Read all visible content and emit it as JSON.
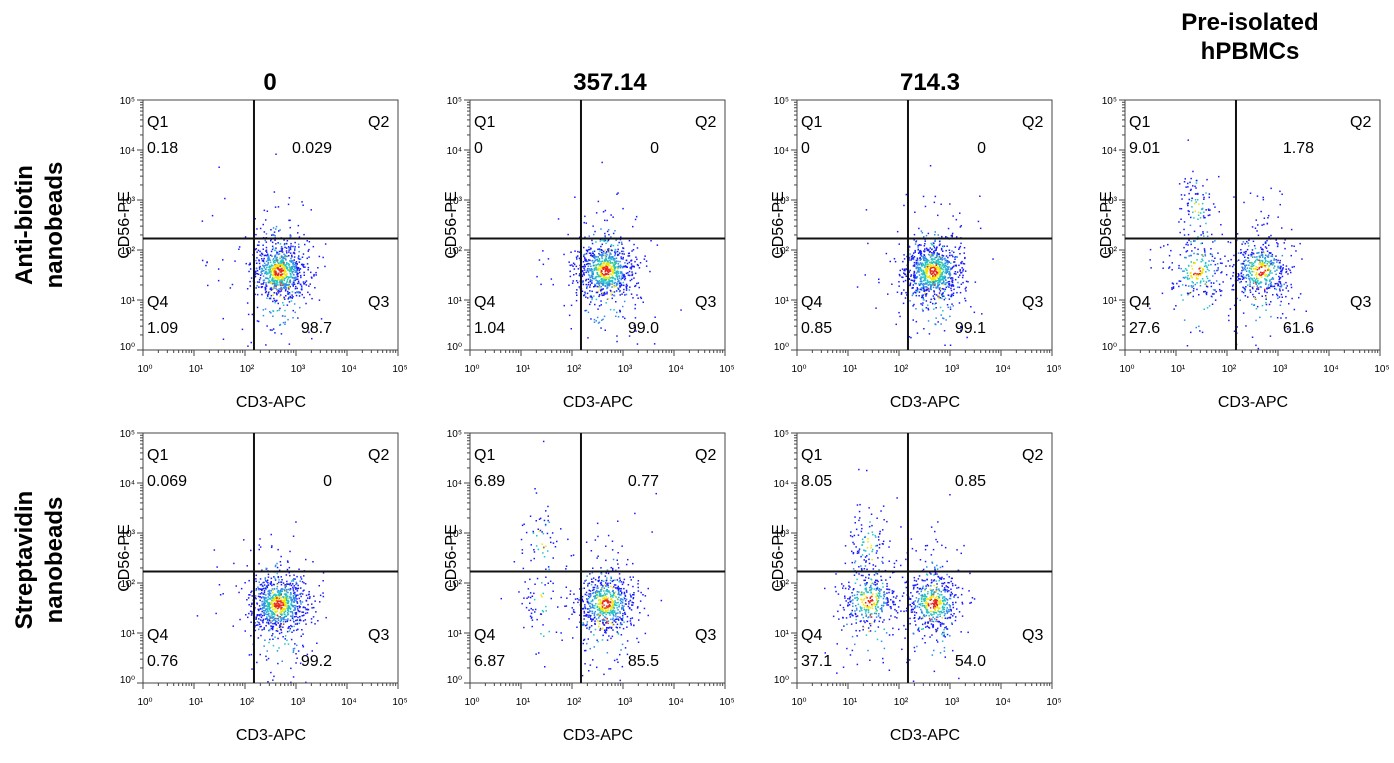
{
  "column_titles": [
    "0",
    "357.14",
    "714.3",
    "Pre-isolated\nhPBMCs"
  ],
  "row_titles": [
    "Anti-biotin\nnanobeads",
    "Streptavidin\nnanobeads"
  ],
  "colors": {
    "cold": "#1a1aff",
    "mid": "#22c4c4",
    "warm": "#f2e600",
    "hot": "#e8281c"
  },
  "chart_data": [
    {
      "type": "scatter",
      "row": 0,
      "col": 0,
      "xlabel": "CD3-APC",
      "ylabel": "CD56-PE",
      "x_scale": "log",
      "y_scale": "log",
      "xlim": [
        1,
        100000
      ],
      "ylim": [
        1,
        100000
      ],
      "x_ticks": [
        "10⁰",
        "10¹",
        "10²",
        "10³",
        "10⁴",
        "10⁵"
      ],
      "y_ticks": [
        "10⁰",
        "10¹",
        "10²",
        "10³",
        "10⁴",
        "10⁵"
      ],
      "x_gate": 150,
      "y_gate": 170,
      "quadrants": {
        "Q1": "0.18",
        "Q2": "0.029",
        "Q3": "98.7",
        "Q4": "1.09"
      },
      "populations": [
        {
          "x": 450,
          "y": 38,
          "n": 900
        },
        {
          "x": 25,
          "y": 45,
          "n": 8
        },
        {
          "x": 40,
          "y": 500,
          "n": 3
        }
      ]
    },
    {
      "type": "scatter",
      "row": 0,
      "col": 1,
      "xlabel": "CD3-APC",
      "ylabel": "CD56-PE",
      "x_scale": "log",
      "y_scale": "log",
      "xlim": [
        1,
        100000
      ],
      "ylim": [
        1,
        100000
      ],
      "x_ticks": [
        "10⁰",
        "10¹",
        "10²",
        "10³",
        "10⁴",
        "10⁵"
      ],
      "y_ticks": [
        "10⁰",
        "10¹",
        "10²",
        "10³",
        "10⁴",
        "10⁵"
      ],
      "x_gate": 150,
      "y_gate": 170,
      "quadrants": {
        "Q1": "0",
        "Q2": "0",
        "Q3": "99.0",
        "Q4": "1.04"
      },
      "populations": [
        {
          "x": 450,
          "y": 40,
          "n": 900
        },
        {
          "x": 30,
          "y": 45,
          "n": 8
        }
      ]
    },
    {
      "type": "scatter",
      "row": 0,
      "col": 2,
      "xlabel": "CD3-APC",
      "ylabel": "CD56-PE",
      "x_scale": "log",
      "y_scale": "log",
      "xlim": [
        1,
        100000
      ],
      "ylim": [
        1,
        100000
      ],
      "x_ticks": [
        "10⁰",
        "10¹",
        "10²",
        "10³",
        "10⁴",
        "10⁵"
      ],
      "y_ticks": [
        "10⁰",
        "10¹",
        "10²",
        "10³",
        "10⁴",
        "10⁵"
      ],
      "x_gate": 150,
      "y_gate": 170,
      "quadrants": {
        "Q1": "0",
        "Q2": "0",
        "Q3": "99.1",
        "Q4": "0.85"
      },
      "populations": [
        {
          "x": 450,
          "y": 38,
          "n": 950
        },
        {
          "x": 30,
          "y": 40,
          "n": 8
        }
      ]
    },
    {
      "type": "scatter",
      "row": 0,
      "col": 3,
      "xlabel": "CD3-APC",
      "ylabel": "CD56-PE",
      "x_scale": "log",
      "y_scale": "log",
      "xlim": [
        1,
        100000
      ],
      "ylim": [
        1,
        100000
      ],
      "x_ticks": [
        "10⁰",
        "10¹",
        "10²",
        "10³",
        "10⁴",
        "10⁵"
      ],
      "y_ticks": [
        "10⁰",
        "10¹",
        "10²",
        "10³",
        "10⁴",
        "10⁵"
      ],
      "x_gate": 150,
      "y_gate": 170,
      "quadrants": {
        "Q1": "9.01",
        "Q2": "1.78",
        "Q3": "61.6",
        "Q4": "27.6"
      },
      "populations": [
        {
          "x": 450,
          "y": 40,
          "n": 500
        },
        {
          "x": 25,
          "y": 40,
          "n": 250
        },
        {
          "x": 25,
          "y": 700,
          "n": 90
        },
        {
          "x": 400,
          "y": 400,
          "n": 20
        }
      ]
    },
    {
      "type": "scatter",
      "row": 1,
      "col": 0,
      "xlabel": "CD3-APC",
      "ylabel": "CD56-PE",
      "x_scale": "log",
      "y_scale": "log",
      "xlim": [
        1,
        100000
      ],
      "ylim": [
        1,
        100000
      ],
      "x_ticks": [
        "10⁰",
        "10¹",
        "10²",
        "10³",
        "10⁴",
        "10⁵"
      ],
      "y_ticks": [
        "10⁰",
        "10¹",
        "10²",
        "10³",
        "10⁴",
        "10⁵"
      ],
      "x_gate": 150,
      "y_gate": 170,
      "quadrants": {
        "Q1": "0.069",
        "Q2": "0",
        "Q3": "99.2",
        "Q4": "0.76"
      },
      "populations": [
        {
          "x": 450,
          "y": 38,
          "n": 900
        },
        {
          "x": 30,
          "y": 45,
          "n": 8
        },
        {
          "x": 30,
          "y": 400,
          "n": 2
        }
      ]
    },
    {
      "type": "scatter",
      "row": 1,
      "col": 1,
      "xlabel": "CD3-APC",
      "ylabel": "CD56-PE",
      "x_scale": "log",
      "y_scale": "log",
      "xlim": [
        1,
        100000
      ],
      "ylim": [
        1,
        100000
      ],
      "x_ticks": [
        "10⁰",
        "10¹",
        "10²",
        "10³",
        "10⁴",
        "10⁵"
      ],
      "y_ticks": [
        "10⁰",
        "10¹",
        "10²",
        "10³",
        "10⁴",
        "10⁵"
      ],
      "x_gate": 150,
      "y_gate": 170,
      "quadrants": {
        "Q1": "6.89",
        "Q2": "0.77",
        "Q3": "85.5",
        "Q4": "6.87"
      },
      "populations": [
        {
          "x": 450,
          "y": 40,
          "n": 700
        },
        {
          "x": 25,
          "y": 45,
          "n": 60
        },
        {
          "x": 25,
          "y": 600,
          "n": 60
        },
        {
          "x": 450,
          "y": 400,
          "n": 8
        }
      ]
    },
    {
      "type": "scatter",
      "row": 1,
      "col": 2,
      "xlabel": "CD3-APC",
      "ylabel": "CD56-PE",
      "x_scale": "log",
      "y_scale": "log",
      "xlim": [
        1,
        100000
      ],
      "ylim": [
        1,
        100000
      ],
      "x_ticks": [
        "10⁰",
        "10¹",
        "10²",
        "10³",
        "10⁴",
        "10⁵"
      ],
      "y_ticks": [
        "10⁰",
        "10¹",
        "10²",
        "10³",
        "10⁴",
        "10⁵"
      ],
      "x_gate": 150,
      "y_gate": 170,
      "quadrants": {
        "Q1": "8.05",
        "Q2": "0.85",
        "Q3": "54.0",
        "Q4": "37.1"
      },
      "populations": [
        {
          "x": 450,
          "y": 40,
          "n": 550
        },
        {
          "x": 25,
          "y": 45,
          "n": 380
        },
        {
          "x": 25,
          "y": 650,
          "n": 100
        },
        {
          "x": 450,
          "y": 450,
          "n": 15
        }
      ]
    }
  ]
}
